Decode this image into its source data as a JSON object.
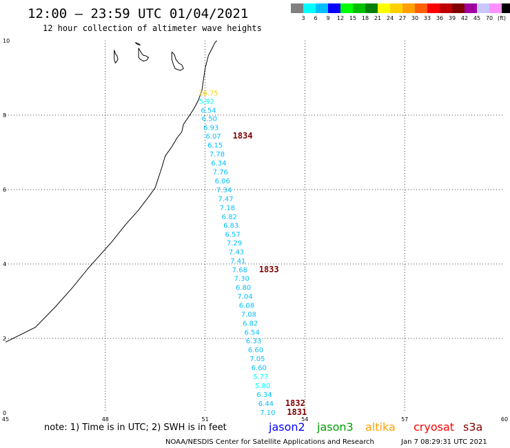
{
  "header": {
    "title": "12:00 — 23:59 UTC 01/04/2021",
    "subtitle": "12 hour collection of altimeter wave heights"
  },
  "legend": {
    "colors": [
      "#808080",
      "#00ffff",
      "#00bfff",
      "#0000ff",
      "#00ff00",
      "#00c000",
      "#008000",
      "#ffff00",
      "#ffd000",
      "#ffa000",
      "#ff6000",
      "#ff0000",
      "#c00000",
      "#800000",
      "#a000a0",
      "#c8c8ff",
      "#ff90ff",
      "#000000"
    ],
    "labels": [
      "3",
      "6",
      "9",
      "12",
      "15",
      "18",
      "21",
      "24",
      "27",
      "30",
      "33",
      "36",
      "39",
      "42",
      "45",
      "70",
      "(ft)"
    ]
  },
  "chart_data": {
    "type": "scatter",
    "xlim": [
      45,
      60
    ],
    "ylim": [
      0,
      10
    ],
    "x_ticks": [
      "45",
      "48",
      "51",
      "54",
      "57",
      "60"
    ],
    "y_ticks": [
      "0",
      "2",
      "4",
      "6",
      "8",
      "10"
    ],
    "grid": true,
    "wave_heights": [
      {
        "value": "26.75",
        "lon": 51.1,
        "lat": 8.6,
        "color": "#ffd000"
      },
      {
        "value": "5.92",
        "lon": 51.05,
        "lat": 8.38,
        "color": "#00ffff"
      },
      {
        "value": "6.54",
        "lon": 51.1,
        "lat": 8.14,
        "color": "#00bfff"
      },
      {
        "value": "6.50",
        "lon": 51.13,
        "lat": 7.92,
        "color": "#00bfff"
      },
      {
        "value": "6.93",
        "lon": 51.18,
        "lat": 7.68,
        "color": "#00bfff"
      },
      {
        "value": "6.07",
        "lon": 51.25,
        "lat": 7.44,
        "color": "#00bfff"
      },
      {
        "value": "6.15",
        "lon": 51.3,
        "lat": 7.2,
        "color": "#00bfff"
      },
      {
        "value": "7.78",
        "lon": 51.36,
        "lat": 6.96,
        "color": "#00bfff"
      },
      {
        "value": "6.34",
        "lon": 51.41,
        "lat": 6.72,
        "color": "#00bfff"
      },
      {
        "value": "7.76",
        "lon": 51.46,
        "lat": 6.48,
        "color": "#00bfff"
      },
      {
        "value": "6.06",
        "lon": 51.52,
        "lat": 6.24,
        "color": "#00bfff"
      },
      {
        "value": "7.34",
        "lon": 51.57,
        "lat": 6.0,
        "color": "#00bfff"
      },
      {
        "value": "7.47",
        "lon": 51.62,
        "lat": 5.76,
        "color": "#00bfff"
      },
      {
        "value": "7.18",
        "lon": 51.67,
        "lat": 5.52,
        "color": "#00bfff"
      },
      {
        "value": "6.82",
        "lon": 51.73,
        "lat": 5.28,
        "color": "#00bfff"
      },
      {
        "value": "6.83",
        "lon": 51.78,
        "lat": 5.05,
        "color": "#00bfff"
      },
      {
        "value": "6.57",
        "lon": 51.83,
        "lat": 4.81,
        "color": "#00bfff"
      },
      {
        "value": "7.29",
        "lon": 51.88,
        "lat": 4.57,
        "color": "#00bfff"
      },
      {
        "value": "7.43",
        "lon": 51.94,
        "lat": 4.33,
        "color": "#00bfff"
      },
      {
        "value": "7.41",
        "lon": 51.99,
        "lat": 4.09,
        "color": "#00bfff"
      },
      {
        "value": "7.68",
        "lon": 52.04,
        "lat": 3.85,
        "color": "#00bfff"
      },
      {
        "value": "7.30",
        "lon": 52.1,
        "lat": 3.62,
        "color": "#00bfff"
      },
      {
        "value": "6.80",
        "lon": 52.15,
        "lat": 3.38,
        "color": "#00bfff"
      },
      {
        "value": "7.04",
        "lon": 52.2,
        "lat": 3.14,
        "color": "#00bfff"
      },
      {
        "value": "6.08",
        "lon": 52.25,
        "lat": 2.9,
        "color": "#00bfff"
      },
      {
        "value": "7.08",
        "lon": 52.31,
        "lat": 2.66,
        "color": "#00bfff"
      },
      {
        "value": "6.82",
        "lon": 52.36,
        "lat": 2.42,
        "color": "#00bfff"
      },
      {
        "value": "6.54",
        "lon": 52.41,
        "lat": 2.18,
        "color": "#00bfff"
      },
      {
        "value": "6.33",
        "lon": 52.46,
        "lat": 1.94,
        "color": "#00bfff"
      },
      {
        "value": "6.60",
        "lon": 52.52,
        "lat": 1.7,
        "color": "#00bfff"
      },
      {
        "value": "7.05",
        "lon": 52.57,
        "lat": 1.46,
        "color": "#00bfff"
      },
      {
        "value": "6.60",
        "lon": 52.62,
        "lat": 1.22,
        "color": "#00bfff"
      },
      {
        "value": "5.77",
        "lon": 52.67,
        "lat": 0.98,
        "color": "#00ffff"
      },
      {
        "value": "5.80",
        "lon": 52.73,
        "lat": 0.74,
        "color": "#00ffff"
      },
      {
        "value": "6.34",
        "lon": 52.78,
        "lat": 0.5,
        "color": "#00bfff"
      },
      {
        "value": "6.44",
        "lon": 52.83,
        "lat": 0.26,
        "color": "#00bfff"
      },
      {
        "value": "7.10",
        "lon": 52.88,
        "lat": 0.02,
        "color": "#00bfff"
      }
    ],
    "time_labels": [
      {
        "text": "1834",
        "lon": 51.25,
        "lat": 7.44
      },
      {
        "text": "1833",
        "lon": 52.04,
        "lat": 3.85
      },
      {
        "text": "1832",
        "lon": 52.83,
        "lat": 0.26
      },
      {
        "text": "1831",
        "lon": 52.88,
        "lat": 0.02
      }
    ],
    "time_label_color": "#800000",
    "coastline": [
      [
        45,
        1.9
      ],
      [
        45.9,
        2.3
      ],
      [
        46.5,
        2.85
      ],
      [
        47,
        3.35
      ],
      [
        47.5,
        3.9
      ],
      [
        48,
        4.4
      ],
      [
        48.2,
        4.6
      ],
      [
        48.6,
        5.05
      ],
      [
        49,
        5.45
      ],
      [
        49.3,
        5.8
      ],
      [
        49.5,
        6.05
      ],
      [
        49.7,
        6.6
      ],
      [
        49.8,
        6.9
      ],
      [
        50,
        7.15
      ],
      [
        50.15,
        7.38
      ],
      [
        50.3,
        7.55
      ],
      [
        50.35,
        7.75
      ],
      [
        50.5,
        7.95
      ],
      [
        50.65,
        8.15
      ],
      [
        50.8,
        8.4
      ],
      [
        50.9,
        8.65
      ],
      [
        50.95,
        8.95
      ],
      [
        51,
        9.25
      ],
      [
        51.1,
        9.6
      ],
      [
        51.3,
        9.95
      ],
      [
        51.35,
        10
      ]
    ],
    "islands": [
      [
        [
          48.27,
          9.75
        ],
        [
          48.3,
          9.65
        ],
        [
          48.35,
          9.6
        ],
        [
          48.38,
          9.5
        ],
        [
          48.35,
          9.45
        ],
        [
          48.3,
          9.4
        ],
        [
          48.27,
          9.5
        ],
        [
          48.27,
          9.75
        ]
      ],
      [
        [
          49.0,
          9.8
        ],
        [
          49.05,
          9.72
        ],
        [
          49.1,
          9.65
        ],
        [
          49.15,
          9.6
        ],
        [
          49.2,
          9.6
        ],
        [
          49.3,
          9.55
        ],
        [
          49.25,
          9.48
        ],
        [
          49.15,
          9.45
        ],
        [
          49.05,
          9.5
        ],
        [
          49.0,
          9.55
        ],
        [
          49.0,
          9.8
        ]
      ],
      [
        [
          50.0,
          9.7
        ],
        [
          50.08,
          9.62
        ],
        [
          50.12,
          9.5
        ],
        [
          50.2,
          9.4
        ],
        [
          50.3,
          9.35
        ],
        [
          50.35,
          9.25
        ],
        [
          50.25,
          9.2
        ],
        [
          50.1,
          9.25
        ],
        [
          50.05,
          9.35
        ],
        [
          50.0,
          9.5
        ],
        [
          50.0,
          9.7
        ]
      ],
      [
        [
          48.9,
          9.95
        ],
        [
          48.97,
          9.9
        ],
        [
          49.05,
          9.88
        ],
        [
          49.0,
          9.92
        ],
        [
          48.9,
          9.95
        ]
      ]
    ]
  },
  "footer": {
    "note": "note: 1) Time is in UTC; 2) SWH is in feet",
    "satellites": [
      {
        "name": "jason2",
        "color": "#0000ff"
      },
      {
        "name": "jason3",
        "color": "#00a000"
      },
      {
        "name": "altika",
        "color": "#ffa000"
      },
      {
        "name": "cryosat",
        "color": "#ff0000"
      },
      {
        "name": "s3a",
        "color": "#800000"
      }
    ],
    "credit": "NOAA/NESDIS Center for Satellite Applications and Research",
    "timestamp": "Jan  7 08:29:31 UTC 2021"
  }
}
